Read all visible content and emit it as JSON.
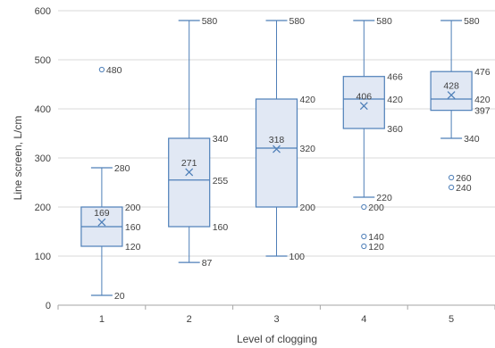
{
  "chart_data": {
    "type": "box",
    "xlabel": "Level of clogging",
    "ylabel": "Line screen, L/cm",
    "ylim": [
      0,
      600
    ],
    "yticks": [
      0,
      100,
      200,
      300,
      400,
      500,
      600
    ],
    "grid": "horizontal",
    "colors": {
      "box_fill": "#e1e8f4",
      "box_stroke": "#4e7fb8",
      "grid": "#d9d9d9",
      "axis": "#a6a6a6"
    },
    "categories": [
      "1",
      "2",
      "3",
      "4",
      "5"
    ],
    "boxes": [
      {
        "category": "1",
        "min": 20,
        "q1": 120,
        "median": 160,
        "q3": 200,
        "max": 280,
        "mean": 169,
        "outliers": [
          480
        ]
      },
      {
        "category": "2",
        "min": 87,
        "q1": 160,
        "median": 255,
        "q3": 340,
        "max": 580,
        "mean": 271,
        "outliers": []
      },
      {
        "category": "3",
        "min": 100,
        "q1": 200,
        "median": 320,
        "q3": 420,
        "max": 580,
        "mean": 318,
        "outliers": []
      },
      {
        "category": "4",
        "min": 220,
        "q1": 360,
        "median": 420,
        "q3": 466,
        "max": 580,
        "mean": 406,
        "outliers": [
          200,
          140,
          120
        ]
      },
      {
        "category": "5",
        "min": 340,
        "q1": 397,
        "median": 420,
        "q3": 476,
        "max": 580,
        "mean": 428,
        "outliers": [
          260,
          240
        ]
      }
    ]
  }
}
